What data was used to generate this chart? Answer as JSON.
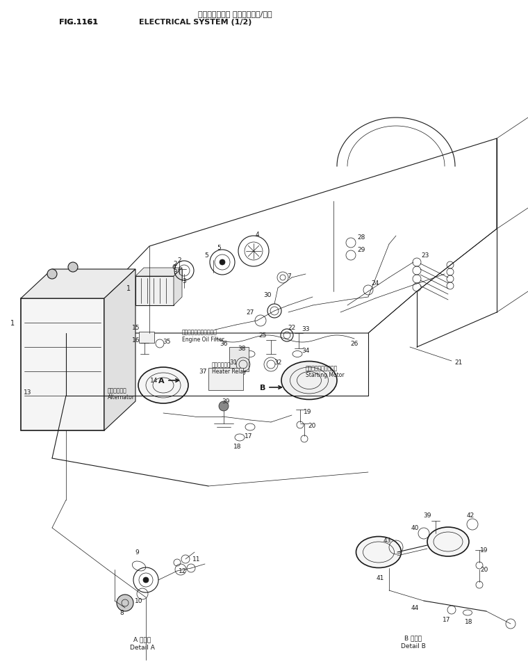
{
  "title_japanese": "エレクトリカル システム（１/２）",
  "title_english": "ELECTRICAL SYSTEM (1/2)",
  "fig_label": "FIG.1161",
  "bg": "#ffffff",
  "lc": "#1a1a1a"
}
